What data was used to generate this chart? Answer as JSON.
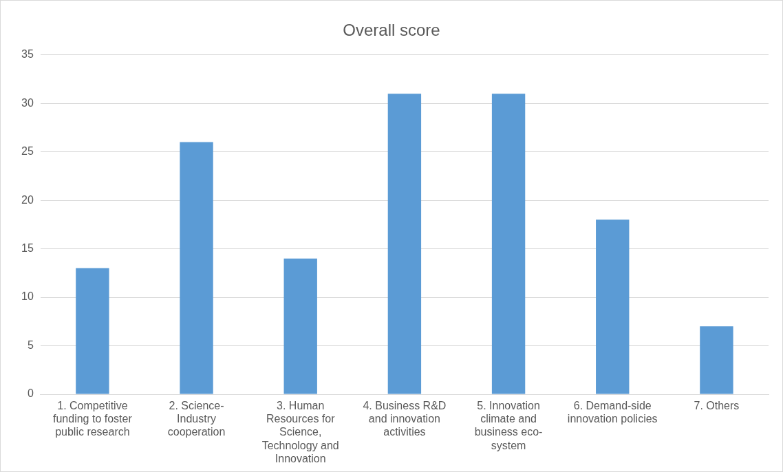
{
  "chart_data": {
    "type": "bar",
    "title": "Overall score",
    "categories": [
      "1. Competitive funding to foster public research",
      "2. Science-Industry cooperation",
      "3. Human Resources for Science, Technology and Innovation",
      "4. Business R&D and innovation activities",
      "5. Innovation climate and business eco-system",
      "6. Demand-side innovation policies",
      "7. Others"
    ],
    "values": [
      13,
      26,
      14,
      31,
      31,
      18,
      7
    ],
    "color": "#5b9bd5",
    "ylim": [
      0,
      35
    ],
    "yticks": [
      0,
      5,
      10,
      15,
      20,
      25,
      30,
      35
    ],
    "grid": "y"
  }
}
